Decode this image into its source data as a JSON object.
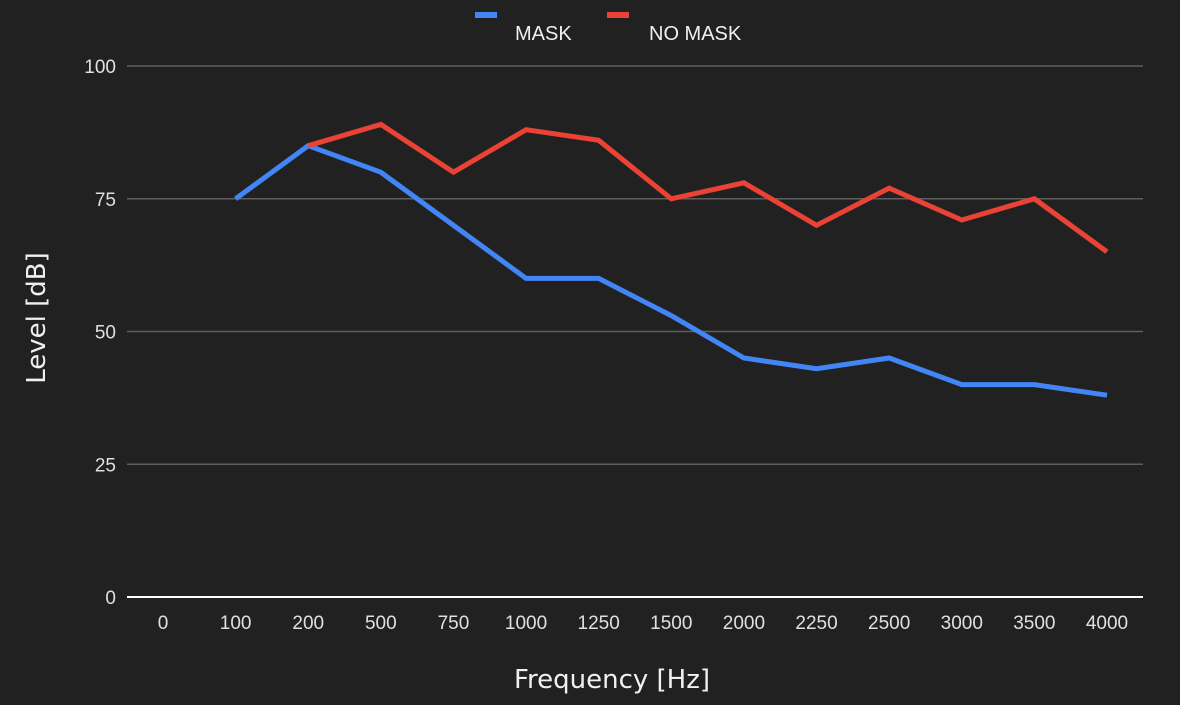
{
  "chart_data": {
    "type": "line",
    "title": "",
    "xlabel": "Frequency [Hz]",
    "ylabel": "Level  [dB]",
    "categories": [
      "0",
      "100",
      "200",
      "500",
      "750",
      "1000",
      "1250",
      "1500",
      "2000",
      "2250",
      "2500",
      "3000",
      "3500",
      "4000"
    ],
    "ylim": [
      0,
      100
    ],
    "yticks": [
      "0",
      "25",
      "50",
      "75",
      "100"
    ],
    "grid": true,
    "legend_position": "top",
    "series": [
      {
        "name": "MASK",
        "color": "#4285f4",
        "values": [
          null,
          75,
          85,
          80,
          70,
          60,
          60,
          53,
          45,
          43,
          45,
          40,
          40,
          38
        ]
      },
      {
        "name": "NO MASK",
        "color": "#ea4335",
        "values": [
          null,
          null,
          85,
          89,
          80,
          88,
          86,
          75,
          78,
          70,
          77,
          71,
          75,
          65
        ]
      }
    ],
    "background": "#212121",
    "grid_color": "#5f5f5f",
    "axis_color": "#ffffff"
  }
}
